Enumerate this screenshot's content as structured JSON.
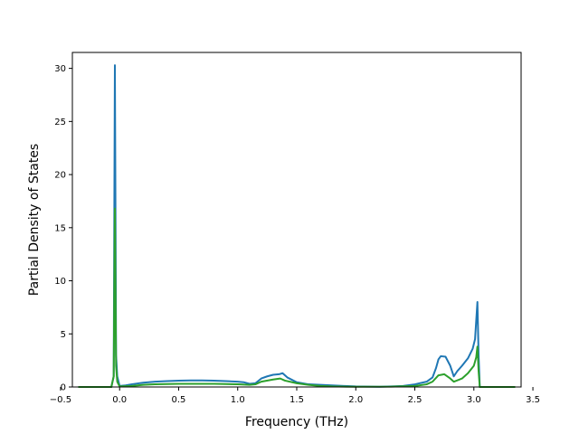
{
  "chart_data": {
    "type": "line",
    "title": "",
    "xlabel": "Frequency (THz)",
    "ylabel": "Partial Density of States",
    "xlim": [
      -0.4,
      3.4
    ],
    "ylim": [
      0,
      31.5
    ],
    "xticks": [
      "−0.5",
      "0.0",
      "0.5",
      "1.0",
      "1.5",
      "2.0",
      "2.5",
      "3.0",
      "3.5"
    ],
    "xtick_values": [
      -0.5,
      0.0,
      0.5,
      1.0,
      1.5,
      2.0,
      2.5,
      3.0,
      3.5
    ],
    "yticks": [
      "0",
      "5",
      "10",
      "15",
      "20",
      "25",
      "30"
    ],
    "ytick_values": [
      0,
      5,
      10,
      15,
      20,
      25,
      30
    ],
    "grid": false,
    "legend": "none",
    "series": [
      {
        "color": "#1f77b4",
        "points": [
          [
            -0.35,
            0.0
          ],
          [
            -0.07,
            0.0
          ],
          [
            -0.05,
            1.0
          ],
          [
            -0.04,
            30.3
          ],
          [
            -0.03,
            3.0
          ],
          [
            -0.02,
            1.0
          ],
          [
            0.0,
            0.1
          ],
          [
            0.05,
            0.15
          ],
          [
            0.1,
            0.25
          ],
          [
            0.2,
            0.4
          ],
          [
            0.3,
            0.5
          ],
          [
            0.4,
            0.55
          ],
          [
            0.5,
            0.6
          ],
          [
            0.6,
            0.62
          ],
          [
            0.7,
            0.62
          ],
          [
            0.8,
            0.6
          ],
          [
            0.9,
            0.55
          ],
          [
            1.0,
            0.5
          ],
          [
            1.05,
            0.45
          ],
          [
            1.1,
            0.3
          ],
          [
            1.15,
            0.35
          ],
          [
            1.2,
            0.8
          ],
          [
            1.25,
            1.0
          ],
          [
            1.3,
            1.15
          ],
          [
            1.35,
            1.2
          ],
          [
            1.38,
            1.3
          ],
          [
            1.42,
            0.9
          ],
          [
            1.5,
            0.45
          ],
          [
            1.6,
            0.25
          ],
          [
            1.7,
            0.2
          ],
          [
            1.8,
            0.15
          ],
          [
            1.9,
            0.1
          ],
          [
            2.0,
            0.05
          ],
          [
            2.2,
            0.02
          ],
          [
            2.3,
            0.05
          ],
          [
            2.4,
            0.1
          ],
          [
            2.5,
            0.25
          ],
          [
            2.6,
            0.5
          ],
          [
            2.65,
            0.9
          ],
          [
            2.68,
            1.8
          ],
          [
            2.7,
            2.6
          ],
          [
            2.72,
            2.9
          ],
          [
            2.76,
            2.85
          ],
          [
            2.8,
            2.0
          ],
          [
            2.83,
            1.0
          ],
          [
            2.86,
            1.5
          ],
          [
            2.9,
            2.0
          ],
          [
            2.95,
            2.7
          ],
          [
            2.99,
            3.6
          ],
          [
            3.01,
            4.5
          ],
          [
            3.03,
            8.0
          ],
          [
            3.04,
            3.0
          ],
          [
            3.05,
            0.0
          ],
          [
            3.35,
            0.0
          ]
        ]
      },
      {
        "color": "#2ca02c",
        "points": [
          [
            -0.35,
            0.0
          ],
          [
            -0.07,
            0.0
          ],
          [
            -0.05,
            1.0
          ],
          [
            -0.04,
            16.8
          ],
          [
            -0.03,
            2.0
          ],
          [
            -0.02,
            0.5
          ],
          [
            0.0,
            0.05
          ],
          [
            0.1,
            0.1
          ],
          [
            0.2,
            0.2
          ],
          [
            0.3,
            0.25
          ],
          [
            0.4,
            0.28
          ],
          [
            0.5,
            0.3
          ],
          [
            0.6,
            0.3
          ],
          [
            0.7,
            0.3
          ],
          [
            0.8,
            0.3
          ],
          [
            0.9,
            0.28
          ],
          [
            1.0,
            0.25
          ],
          [
            1.1,
            0.2
          ],
          [
            1.15,
            0.25
          ],
          [
            1.2,
            0.5
          ],
          [
            1.3,
            0.7
          ],
          [
            1.36,
            0.8
          ],
          [
            1.4,
            0.6
          ],
          [
            1.5,
            0.35
          ],
          [
            1.6,
            0.2
          ],
          [
            1.7,
            0.1
          ],
          [
            1.8,
            0.05
          ],
          [
            2.0,
            0.02
          ],
          [
            2.3,
            0.03
          ],
          [
            2.5,
            0.1
          ],
          [
            2.6,
            0.25
          ],
          [
            2.65,
            0.5
          ],
          [
            2.7,
            1.1
          ],
          [
            2.75,
            1.2
          ],
          [
            2.8,
            0.8
          ],
          [
            2.83,
            0.5
          ],
          [
            2.9,
            0.8
          ],
          [
            2.95,
            1.3
          ],
          [
            3.0,
            2.0
          ],
          [
            3.02,
            2.8
          ],
          [
            3.03,
            3.8
          ],
          [
            3.04,
            1.5
          ],
          [
            3.05,
            0.0
          ],
          [
            3.35,
            0.0
          ]
        ]
      }
    ]
  }
}
